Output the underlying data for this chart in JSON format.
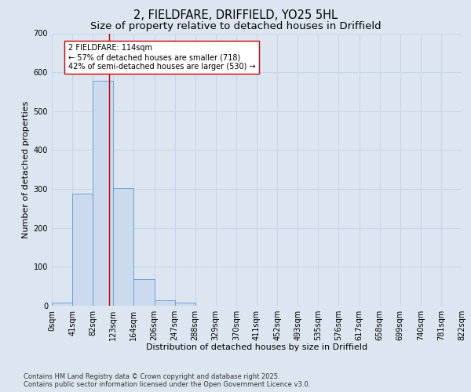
{
  "title_line1": "2, FIELDFARE, DRIFFIELD, YO25 5HL",
  "title_line2": "Size of property relative to detached houses in Driffield",
  "xlabel": "Distribution of detached houses by size in Driffield",
  "ylabel": "Number of detached properties",
  "bar_values": [
    8,
    288,
    578,
    302,
    68,
    15,
    8,
    0,
    0,
    0,
    0,
    0,
    0,
    0,
    0,
    0,
    0,
    0,
    0,
    0
  ],
  "bar_labels": [
    "0sqm",
    "41sqm",
    "82sqm",
    "123sqm",
    "164sqm",
    "206sqm",
    "247sqm",
    "288sqm",
    "329sqm",
    "370sqm",
    "411sqm",
    "452sqm",
    "493sqm",
    "535sqm",
    "576sqm",
    "617sqm",
    "658sqm",
    "699sqm",
    "740sqm",
    "781sqm",
    "822sqm"
  ],
  "bar_color": "#ccdaee",
  "bar_edge_color": "#5b9bd5",
  "vline_x": 2.78,
  "vline_color": "#cc0000",
  "annotation_text": "2 FIELDFARE: 114sqm\n← 57% of detached houses are smaller (718)\n42% of semi-detached houses are larger (530) →",
  "annotation_box_color": "#ffffff",
  "annotation_box_edge": "#cc0000",
  "ylim": [
    0,
    700
  ],
  "yticks": [
    0,
    100,
    200,
    300,
    400,
    500,
    600,
    700
  ],
  "grid_color": "#c8d4e8",
  "background_color": "#dde6f0",
  "footer_line1": "Contains HM Land Registry data © Crown copyright and database right 2025.",
  "footer_line2": "Contains public sector information licensed under the Open Government Licence v3.0.",
  "title_fontsize": 10.5,
  "subtitle_fontsize": 9.5,
  "axis_label_fontsize": 8,
  "tick_fontsize": 7,
  "annotation_fontsize": 7,
  "footer_fontsize": 6
}
